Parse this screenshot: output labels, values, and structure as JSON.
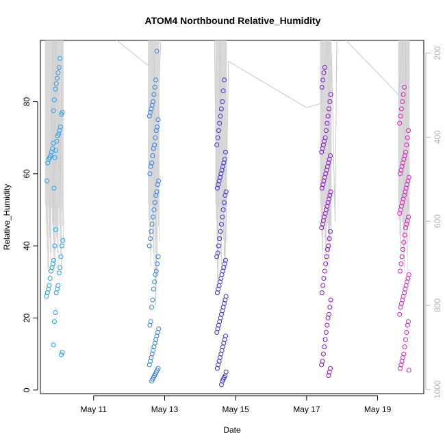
{
  "chart_data": {
    "type": "scatter",
    "title": "ATOM4 Northbound Relative_Humidity",
    "xlabel": "Date",
    "ylabel": "Relative_Humidity",
    "x_ticks": [
      "May 11",
      "May 13",
      "May 15",
      "May 17",
      "May 19"
    ],
    "x_tick_days": [
      11,
      13,
      15,
      17,
      19
    ],
    "xlim": [
      9.5,
      20.3
    ],
    "ylim": [
      -1,
      97
    ],
    "y_ticks": [
      0,
      20,
      40,
      60,
      80
    ],
    "y2_ticks": [
      200,
      400,
      600,
      800,
      1000
    ],
    "y2lim": [
      1010,
      170
    ],
    "grid": false,
    "series": [
      {
        "color": "#1ea0ea",
        "clusters": [
          {
            "day": 9.8,
            "values": [
              26,
              27,
              28,
              29,
              31,
              33,
              34,
              35,
              36,
              40,
              44.5,
              58,
              63,
              64,
              64.5,
              65,
              66,
              67,
              68.5
            ]
          },
          {
            "day": 10.0,
            "values": [
              9.8,
              10.5,
              12.5,
              19,
              21.5,
              27,
              28,
              29,
              32.5,
              34,
              37,
              40,
              41.5,
              56,
              64.5,
              66.5,
              69,
              70.5,
              71,
              72,
              73,
              76.5,
              77,
              77.5,
              80.5,
              83.5,
              85,
              86.5,
              88,
              89.5,
              92
            ]
          }
        ]
      },
      {
        "color": "#2e80e6",
        "clusters": [
          {
            "day": 12.7,
            "values": [
              2.5,
              3,
              3.5,
              4,
              4.5,
              5,
              5.5,
              6,
              7,
              8,
              9,
              10,
              11,
              12,
              13,
              14,
              15,
              16,
              17,
              18,
              19,
              23,
              25,
              28,
              30,
              32,
              33,
              35,
              37,
              40,
              42,
              44,
              46,
              48,
              50,
              52,
              54,
              55,
              57,
              58,
              60,
              62,
              63,
              65,
              67,
              68,
              70,
              72,
              73,
              75,
              76,
              77,
              78,
              79,
              80,
              82,
              84,
              86,
              94
            ]
          }
        ]
      },
      {
        "color": "#3a2ee6",
        "clusters": [
          {
            "day": 14.6,
            "values": [
              1.5,
              2.5,
              3,
              3.5,
              4,
              5,
              6,
              7,
              8,
              9,
              10,
              11,
              12,
              13,
              14,
              15,
              16,
              17,
              18,
              19,
              20,
              21,
              22,
              23,
              24,
              25,
              26,
              27,
              28,
              29,
              30,
              31,
              32,
              33,
              34,
              35,
              36,
              37,
              38,
              40,
              42,
              44,
              46,
              48,
              50,
              52,
              54,
              55,
              56,
              57,
              58,
              59,
              60,
              61,
              62,
              63,
              64,
              66,
              68,
              70,
              72,
              74,
              76,
              78,
              80,
              83,
              86
            ]
          }
        ]
      },
      {
        "color": "#8a10d8",
        "clusters": [
          {
            "day": 17.55,
            "values": [
              4,
              5,
              6,
              7,
              8,
              10,
              12,
              14,
              16,
              18,
              20,
              21,
              23,
              25,
              27,
              29,
              31,
              33,
              35,
              37,
              39,
              40,
              42,
              44,
              45,
              46,
              47,
              48,
              49,
              50,
              51,
              52,
              53,
              54,
              55,
              56,
              57,
              58,
              59,
              60,
              61,
              62,
              63,
              64,
              65,
              66,
              67,
              68,
              69,
              70,
              72,
              74,
              76,
              78,
              80,
              82,
              84,
              86,
              88,
              89.5
            ]
          }
        ]
      },
      {
        "color": "#e01cc0",
        "clusters": [
          {
            "day": 19.75,
            "values": [
              5.5,
              6,
              7,
              8,
              9,
              10,
              12,
              14,
              16,
              18,
              19,
              21,
              23,
              24,
              25,
              26,
              27,
              28,
              29,
              30,
              31,
              32,
              33,
              35,
              37,
              39,
              41,
              43,
              45,
              46,
              47,
              48,
              49,
              50,
              51,
              52,
              53,
              54,
              55,
              56,
              57,
              58,
              59,
              60,
              61,
              62,
              63,
              64,
              65,
              66,
              68,
              70,
              72,
              74,
              76,
              78,
              80,
              82,
              84
            ]
          }
        ]
      }
    ],
    "secondary_line": {
      "color": "#c8c8c8",
      "points": [
        [
          9.72,
          720
        ],
        [
          9.76,
          560
        ],
        [
          9.8,
          270
        ],
        [
          9.86,
          600
        ],
        [
          9.9,
          430
        ],
        [
          9.95,
          150
        ],
        [
          10.05,
          560
        ],
        [
          10.1,
          160
        ],
        [
          11.5,
          160
        ],
        [
          12.55,
          230
        ],
        [
          12.7,
          210
        ],
        [
          12.75,
          800
        ],
        [
          12.85,
          250
        ],
        [
          12.9,
          160
        ],
        [
          14.0,
          160
        ],
        [
          14.4,
          160
        ],
        [
          14.5,
          760
        ],
        [
          14.55,
          160
        ],
        [
          14.7,
          720
        ],
        [
          14.8,
          220
        ],
        [
          17.0,
          330
        ],
        [
          17.4,
          320
        ],
        [
          17.6,
          160
        ],
        [
          17.65,
          650
        ],
        [
          17.7,
          200
        ],
        [
          17.8,
          600
        ],
        [
          17.85,
          160
        ],
        [
          18.0,
          160
        ],
        [
          19.6,
          300
        ],
        [
          19.7,
          160
        ],
        [
          19.75,
          700
        ],
        [
          19.8,
          160
        ],
        [
          19.85,
          620
        ]
      ]
    }
  }
}
